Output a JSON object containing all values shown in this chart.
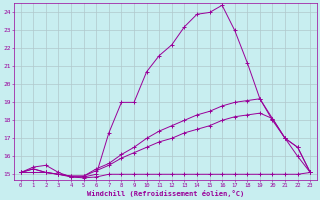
{
  "xlabel": "Windchill (Refroidissement éolien,°C)",
  "xlim": [
    -0.5,
    23.5
  ],
  "ylim": [
    14.7,
    24.5
  ],
  "yticks": [
    15,
    16,
    17,
    18,
    19,
    20,
    21,
    22,
    23,
    24
  ],
  "xticks": [
    0,
    1,
    2,
    3,
    4,
    5,
    6,
    7,
    8,
    9,
    10,
    11,
    12,
    13,
    14,
    15,
    16,
    17,
    18,
    19,
    20,
    21,
    22,
    23
  ],
  "bg_color": "#c8eef0",
  "line_color": "#990099",
  "grid_color": "#b0c8cc",
  "lines": [
    {
      "x": [
        0,
        1,
        2,
        3,
        4,
        5,
        6,
        7,
        8,
        9,
        10,
        11,
        12,
        13,
        14,
        15,
        16,
        17,
        18,
        19,
        20,
        21,
        22,
        23
      ],
      "y": [
        15.1,
        15.4,
        15.5,
        15.1,
        14.85,
        14.85,
        15.0,
        17.3,
        19.0,
        19.0,
        20.7,
        21.6,
        22.2,
        23.2,
        23.9,
        24.0,
        24.4,
        23.0,
        21.2,
        19.2,
        18.1,
        17.0,
        16.0,
        15.1
      ]
    },
    {
      "x": [
        0,
        1,
        2,
        3,
        4,
        5,
        6,
        7,
        8,
        9,
        10,
        11,
        12,
        13,
        14,
        15,
        16,
        17,
        18,
        19,
        20,
        21,
        22,
        23
      ],
      "y": [
        15.1,
        15.3,
        15.1,
        15.0,
        14.9,
        14.9,
        15.3,
        15.6,
        16.1,
        16.5,
        17.0,
        17.4,
        17.7,
        18.0,
        18.3,
        18.5,
        18.8,
        19.0,
        19.1,
        19.2,
        18.0,
        17.0,
        16.5,
        15.1
      ]
    },
    {
      "x": [
        0,
        1,
        2,
        3,
        4,
        5,
        6,
        7,
        8,
        9,
        10,
        11,
        12,
        13,
        14,
        15,
        16,
        17,
        18,
        19,
        20,
        21,
        22,
        23
      ],
      "y": [
        15.1,
        15.3,
        15.1,
        15.0,
        14.9,
        14.9,
        15.2,
        15.5,
        15.9,
        16.2,
        16.5,
        16.8,
        17.0,
        17.3,
        17.5,
        17.7,
        18.0,
        18.2,
        18.3,
        18.4,
        18.1,
        17.0,
        16.5,
        15.1
      ]
    },
    {
      "x": [
        0,
        1,
        2,
        3,
        4,
        5,
        6,
        7,
        8,
        9,
        10,
        11,
        12,
        13,
        14,
        15,
        16,
        17,
        18,
        19,
        20,
        21,
        22,
        23
      ],
      "y": [
        15.1,
        15.1,
        15.1,
        15.0,
        14.85,
        14.8,
        14.85,
        15.0,
        15.0,
        15.0,
        15.0,
        15.0,
        15.0,
        15.0,
        15.0,
        15.0,
        15.0,
        15.0,
        15.0,
        15.0,
        15.0,
        15.0,
        15.0,
        15.1
      ]
    }
  ]
}
